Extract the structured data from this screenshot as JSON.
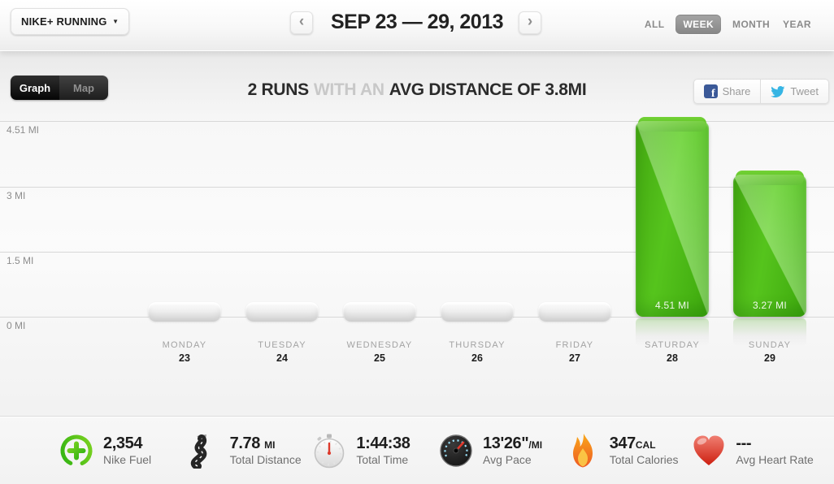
{
  "header": {
    "app_selector_label": "NIKE+ RUNNING",
    "date_range": "SEP 23 — 29, 2013",
    "tabs": [
      {
        "label": "ALL",
        "active": false
      },
      {
        "label": "WEEK",
        "active": true
      },
      {
        "label": "MONTH",
        "active": false
      },
      {
        "label": "YEAR",
        "active": false
      }
    ]
  },
  "icons": {
    "caret_down": "▼",
    "prev_arrow": "‹",
    "next_arrow": "›",
    "facebook_f": "f"
  },
  "toolbar": {
    "view_tabs": [
      {
        "label": "Graph",
        "active": true
      },
      {
        "label": "Map",
        "active": false
      }
    ],
    "summary_parts": {
      "prefix": "2 RUNS",
      "middle": "WITH AN",
      "suffix": "AVG DISTANCE OF 3.8MI"
    },
    "share_label": "Share",
    "tweet_label": "Tweet"
  },
  "chart_data": {
    "type": "bar",
    "title": "2 RUNS WITH AN AVG DISTANCE OF 3.8MI",
    "categories": [
      "MONDAY",
      "TUESDAY",
      "WEDNESDAY",
      "THURSDAY",
      "FRIDAY",
      "SATURDAY",
      "SUNDAY"
    ],
    "day_numbers": [
      "23",
      "24",
      "25",
      "26",
      "27",
      "28",
      "29"
    ],
    "values": [
      0,
      0,
      0,
      0,
      0,
      4.51,
      3.27
    ],
    "bar_labels": [
      "",
      "",
      "",
      "",
      "",
      "4.51 MI",
      "3.27 MI"
    ],
    "ylabel": "MI",
    "ylim": [
      0,
      4.51
    ],
    "yticks": [
      {
        "label": "4.51 MI",
        "value": 4.51
      },
      {
        "label": "3 MI",
        "value": 3
      },
      {
        "label": "1.5 MI",
        "value": 1.5
      },
      {
        "label": "0 MI",
        "value": 0
      }
    ],
    "grid": true,
    "bar_color": "#52c71d"
  },
  "stats": [
    {
      "icon": "nike-fuel-icon",
      "value": "2,354",
      "unit": "",
      "label": "Nike Fuel"
    },
    {
      "icon": "road-icon",
      "value": "7.78",
      "unit": "MI",
      "label": "Total Distance"
    },
    {
      "icon": "stopwatch-icon",
      "value": "1:44:38",
      "unit": "",
      "label": "Total Time"
    },
    {
      "icon": "speedometer-icon",
      "value": "13'26\"",
      "unit": "/MI",
      "label": "Avg Pace"
    },
    {
      "icon": "flame-icon",
      "value": "347",
      "unit": "CAL",
      "label": "Total Calories"
    },
    {
      "icon": "heart-icon",
      "value": "---",
      "unit": "",
      "label": "Avg Heart Rate"
    }
  ],
  "colors": {
    "accent_green": "#4fc41e",
    "bar_green": "#52c71d",
    "facebook_blue": "#3b5998",
    "twitter_blue": "#36b5e4",
    "active_range_tab": "#909090"
  }
}
